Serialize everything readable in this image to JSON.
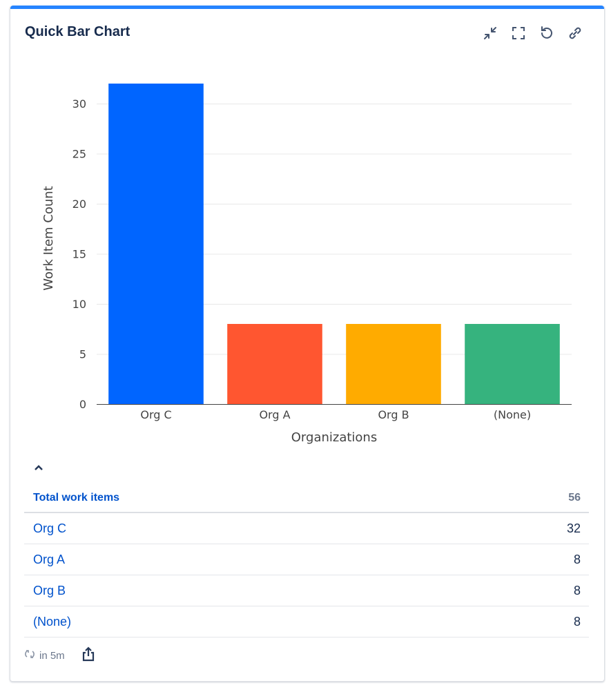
{
  "header": {
    "title": "Quick Bar Chart",
    "icons": [
      "minimize-icon",
      "fullscreen-icon",
      "refresh-icon",
      "link-icon"
    ]
  },
  "chart_data": {
    "type": "bar",
    "categories": [
      "Org C",
      "Org A",
      "Org B",
      "(None)"
    ],
    "values": [
      32,
      8,
      8,
      8
    ],
    "colors": [
      "#0065ff",
      "#ff5630",
      "#ffab00",
      "#36b37e"
    ],
    "xlabel": "Organizations",
    "ylabel": "Work Item Count",
    "ylim": [
      0,
      33
    ],
    "yticks": [
      0,
      5,
      10,
      15,
      20,
      25,
      30
    ],
    "grid": true
  },
  "table": {
    "total_label": "Total work items",
    "total_value": "56",
    "rows": [
      {
        "label": "Org C",
        "value": "32"
      },
      {
        "label": "Org A",
        "value": "8"
      },
      {
        "label": "Org B",
        "value": "8"
      },
      {
        "label": "(None)",
        "value": "8"
      }
    ]
  },
  "footer": {
    "refresh_text": "in 5m"
  }
}
